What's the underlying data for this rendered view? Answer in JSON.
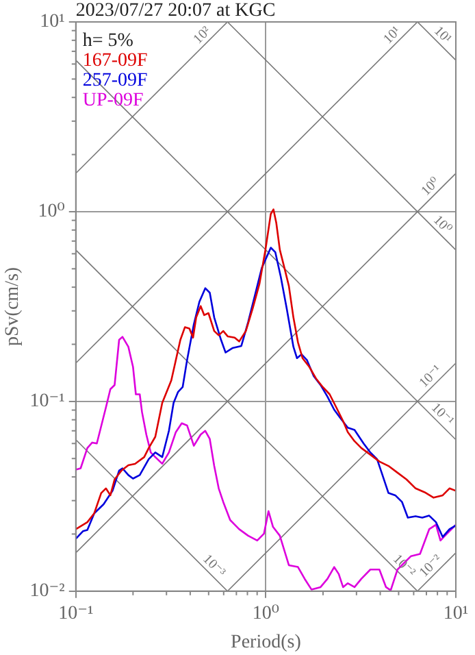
{
  "chart_data": {
    "type": "line",
    "title": "2023/07/27 20:07 at KGC",
    "xlabel": "Period(s)",
    "ylabel": "pSv(cm/s)",
    "annotations": [
      "h= 5%"
    ],
    "log": "xy",
    "grid": true,
    "legend": "top left",
    "xlim": [
      0.1,
      10
    ],
    "ylim": [
      0.01,
      10
    ],
    "xticks": [
      {
        "value": 0.1,
        "label": "10⁻¹"
      },
      {
        "value": 1,
        "label": "10⁰"
      },
      {
        "value": 10,
        "label": "10¹"
      }
    ],
    "yticks": [
      {
        "value": 0.01,
        "label": "10⁻²"
      },
      {
        "value": 0.1,
        "label": "10⁻¹"
      },
      {
        "value": 1,
        "label": "10⁰"
      },
      {
        "value": 10,
        "label": "10¹"
      }
    ],
    "series": [
      {
        "name": "167-09F",
        "color": "#dd0000",
        "x": [
          0.1,
          0.115,
          0.125,
          0.136,
          0.144,
          0.152,
          0.16,
          0.174,
          0.189,
          0.205,
          0.229,
          0.242,
          0.262,
          0.285,
          0.318,
          0.355,
          0.375,
          0.396,
          0.414,
          0.43,
          0.454,
          0.474,
          0.499,
          0.535,
          0.565,
          0.597,
          0.631,
          0.685,
          0.724,
          0.785,
          0.853,
          0.926,
          0.995,
          1.062,
          1.097,
          1.135,
          1.185,
          1.253,
          1.322,
          1.397,
          1.476,
          1.56,
          1.694,
          1.837,
          1.995,
          2.167,
          2.35,
          2.55,
          2.7,
          2.93,
          3.18,
          3.55,
          3.96,
          4.42,
          4.93,
          5.5,
          6.14,
          6.85,
          7.64,
          8.53,
          9.26,
          10
        ],
        "values": [
          0.0212,
          0.0231,
          0.0257,
          0.0329,
          0.0348,
          0.032,
          0.0388,
          0.0432,
          0.0461,
          0.0469,
          0.0509,
          0.0568,
          0.0651,
          0.0982,
          0.129,
          0.211,
          0.246,
          0.242,
          0.217,
          0.277,
          0.318,
          0.285,
          0.292,
          0.235,
          0.223,
          0.235,
          0.22,
          0.217,
          0.207,
          0.235,
          0.309,
          0.417,
          0.629,
          0.973,
          1.027,
          0.873,
          0.629,
          0.505,
          0.406,
          0.277,
          0.205,
          0.169,
          0.152,
          0.132,
          0.119,
          0.109,
          0.0929,
          0.0788,
          0.0689,
          0.0617,
          0.0568,
          0.0524,
          0.0482,
          0.0457,
          0.0421,
          0.0388,
          0.0348,
          0.0332,
          0.0311,
          0.032,
          0.0348,
          0.0338
        ]
      },
      {
        "name": "257-09F",
        "color": "#0000dd",
        "x": [
          0.1,
          0.109,
          0.115,
          0.125,
          0.14,
          0.156,
          0.169,
          0.176,
          0.189,
          0.2,
          0.217,
          0.242,
          0.262,
          0.285,
          0.309,
          0.327,
          0.345,
          0.365,
          0.385,
          0.418,
          0.447,
          0.48,
          0.507,
          0.535,
          0.581,
          0.614,
          0.667,
          0.743,
          0.807,
          0.877,
          0.952,
          1.062,
          1.122,
          1.199,
          1.288,
          1.397,
          1.459,
          1.541,
          1.647,
          1.787,
          1.941,
          2.11,
          2.29,
          2.48,
          2.7,
          2.93,
          3.27,
          3.55,
          3.85,
          4.07,
          4.42,
          4.8,
          5.21,
          5.59,
          6.14,
          6.66,
          7.24,
          7.86,
          8.53,
          9.26,
          10
        ],
        "values": [
          0.0189,
          0.0207,
          0.021,
          0.0257,
          0.0287,
          0.0338,
          0.0432,
          0.0444,
          0.0409,
          0.0392,
          0.0409,
          0.0496,
          0.0538,
          0.0509,
          0.07,
          0.0982,
          0.112,
          0.119,
          0.165,
          0.255,
          0.335,
          0.395,
          0.374,
          0.277,
          0.211,
          0.181,
          0.191,
          0.196,
          0.262,
          0.364,
          0.505,
          0.646,
          0.611,
          0.453,
          0.309,
          0.194,
          0.169,
          0.177,
          0.165,
          0.136,
          0.122,
          0.106,
          0.0904,
          0.0811,
          0.0727,
          0.0707,
          0.06,
          0.0538,
          0.0496,
          0.0421,
          0.0329,
          0.032,
          0.0295,
          0.0244,
          0.0248,
          0.0244,
          0.025,
          0.0231,
          0.0193,
          0.0212,
          0.0222
        ]
      },
      {
        "name": "UP-09F",
        "color": "#dd00dd",
        "x": [
          0.1,
          0.106,
          0.115,
          0.122,
          0.129,
          0.144,
          0.152,
          0.16,
          0.169,
          0.176,
          0.189,
          0.2,
          0.207,
          0.217,
          0.223,
          0.235,
          0.248,
          0.262,
          0.285,
          0.309,
          0.336,
          0.361,
          0.385,
          0.418,
          0.454,
          0.48,
          0.507,
          0.535,
          0.565,
          0.597,
          0.649,
          0.724,
          0.807,
          0.901,
          0.978,
          1.033,
          1.091,
          1.185,
          1.322,
          1.476,
          1.602,
          1.739,
          1.941,
          2.11,
          2.29,
          2.42,
          2.55,
          2.7,
          2.93,
          3.18,
          3.55,
          3.96,
          4.29,
          4.54,
          4.93,
          5.35,
          5.81,
          6.48,
          7.24,
          7.86,
          8.3,
          8.77,
          10
        ],
        "values": [
          0.0437,
          0.0444,
          0.0568,
          0.0607,
          0.06,
          0.0929,
          0.116,
          0.122,
          0.211,
          0.219,
          0.194,
          0.152,
          0.109,
          0.109,
          0.0879,
          0.0669,
          0.0538,
          0.0509,
          0.0469,
          0.0538,
          0.0689,
          0.0767,
          0.0747,
          0.0584,
          0.0669,
          0.07,
          0.0634,
          0.0457,
          0.0348,
          0.0295,
          0.0237,
          0.0212,
          0.0196,
          0.0185,
          0.0201,
          0.0264,
          0.0218,
          0.0196,
          0.0137,
          0.0134,
          0.0116,
          0.0102,
          0.0105,
          0.0116,
          0.0134,
          0.0123,
          0.0105,
          0.011,
          0.0105,
          0.0116,
          0.013,
          0.013,
          0.0105,
          0.0101,
          0.013,
          0.0141,
          0.0153,
          0.0157,
          0.0212,
          0.0224,
          0.0185,
          0.0196,
          0.0224
        ]
      },
      {
        "type": "line",
        "name": "10²",
        "color": "#777777",
        "x": [
          0.1,
          0.6283
        ],
        "values": [
          1.592,
          10
        ]
      },
      {
        "type": "line",
        "name": "10¹",
        "color": "#777777",
        "x": [
          0.1,
          6.283
        ],
        "values": [
          0.1592,
          10
        ]
      },
      {
        "type": "line",
        "name": "10⁰",
        "color": "#777777",
        "x": [
          0.1,
          10
        ],
        "values": [
          0.01592,
          1.592
        ]
      },
      {
        "type": "line",
        "name": "10⁻¹",
        "color": "#777777",
        "x": [
          0.6283,
          10
        ],
        "values": [
          0.01,
          0.1592
        ]
      },
      {
        "type": "line",
        "name": "10⁻²",
        "color": "#777777",
        "x": [
          6.283,
          10
        ],
        "values": [
          0.01,
          0.01592
        ]
      },
      {
        "type": "line",
        "name": "10¹",
        "color": "#777777",
        "x": [
          6.283,
          10
        ],
        "values": [
          10,
          6.283
        ]
      },
      {
        "type": "line",
        "name": "10⁰",
        "color": "#777777",
        "x": [
          0.6283,
          10
        ],
        "values": [
          10,
          0.6283
        ]
      },
      {
        "type": "line",
        "name": "10⁻¹",
        "color": "#777777",
        "x": [
          0.1,
          10
        ],
        "values": [
          6.283,
          0.06283
        ]
      },
      {
        "type": "line",
        "name": "10⁻²",
        "color": "#777777",
        "x": [
          0.1,
          6.283
        ],
        "values": [
          0.6283,
          0.01
        ]
      },
      {
        "type": "line",
        "name": "10⁻³",
        "color": "#777777",
        "x": [
          0.1,
          0.6283
        ],
        "values": [
          0.06283,
          0.01
        ]
      }
    ]
  }
}
